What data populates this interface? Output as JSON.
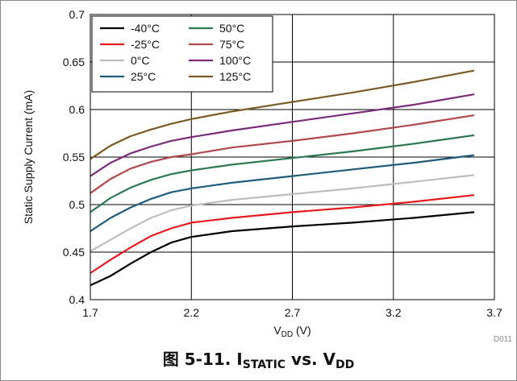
{
  "figure": {
    "caption_prefix": "图 5-11.",
    "caption_main1": "I",
    "caption_sub1": "STATIC",
    "caption_main2": " vs. V",
    "caption_sub2": "DD",
    "figure_id": "D011"
  },
  "chart_data": {
    "type": "line",
    "xlabel_main": "V",
    "xlabel_sub": "DD",
    "xlabel_unit": " (V)",
    "ylabel": "Static Supply Current (mA)",
    "xlim": [
      1.7,
      3.7
    ],
    "ylim": [
      0.4,
      0.7
    ],
    "xticks": [
      1.7,
      2.2,
      2.7,
      3.2,
      3.7
    ],
    "xtick_labels": [
      "1.7",
      "2.2",
      "2.7",
      "3.2",
      "3.7"
    ],
    "yticks": [
      0.4,
      0.45,
      0.5,
      0.55,
      0.6,
      0.65,
      0.7
    ],
    "ytick_labels": [
      "0.4",
      "0.45",
      "0.5",
      "0.55",
      "0.6",
      "0.65",
      "0.7"
    ],
    "grid": true,
    "legend_position": "top-left",
    "x": [
      1.7,
      1.8,
      1.9,
      2.0,
      2.1,
      2.2,
      2.4,
      2.7,
      3.0,
      3.3,
      3.6
    ],
    "series": [
      {
        "name": "-40°C",
        "color": "#000000",
        "values": [
          0.415,
          0.425,
          0.438,
          0.45,
          0.46,
          0.466,
          0.472,
          0.477,
          0.481,
          0.486,
          0.492
        ]
      },
      {
        "name": "-25°C",
        "color": "#e8191f",
        "values": [
          0.428,
          0.442,
          0.455,
          0.467,
          0.475,
          0.481,
          0.486,
          0.492,
          0.497,
          0.503,
          0.51
        ]
      },
      {
        "name": "0°C",
        "color": "#bebebe",
        "values": [
          0.451,
          0.463,
          0.475,
          0.486,
          0.494,
          0.499,
          0.505,
          0.511,
          0.517,
          0.524,
          0.531
        ]
      },
      {
        "name": "25°C",
        "color": "#1f5c7a",
        "values": [
          0.472,
          0.486,
          0.497,
          0.506,
          0.513,
          0.517,
          0.523,
          0.53,
          0.537,
          0.544,
          0.552
        ]
      },
      {
        "name": "50°C",
        "color": "#2c7a52",
        "values": [
          0.492,
          0.507,
          0.518,
          0.526,
          0.532,
          0.536,
          0.542,
          0.549,
          0.556,
          0.564,
          0.573
        ]
      },
      {
        "name": "75°C",
        "color": "#b0484c",
        "values": [
          0.512,
          0.527,
          0.538,
          0.545,
          0.55,
          0.553,
          0.56,
          0.567,
          0.575,
          0.584,
          0.594
        ]
      },
      {
        "name": "100°C",
        "color": "#7a2c7a",
        "values": [
          0.53,
          0.544,
          0.554,
          0.561,
          0.567,
          0.571,
          0.578,
          0.587,
          0.596,
          0.605,
          0.616
        ]
      },
      {
        "name": "125°C",
        "color": "#7a5a24",
        "values": [
          0.548,
          0.562,
          0.572,
          0.579,
          0.585,
          0.59,
          0.598,
          0.608,
          0.618,
          0.629,
          0.641
        ]
      }
    ]
  }
}
